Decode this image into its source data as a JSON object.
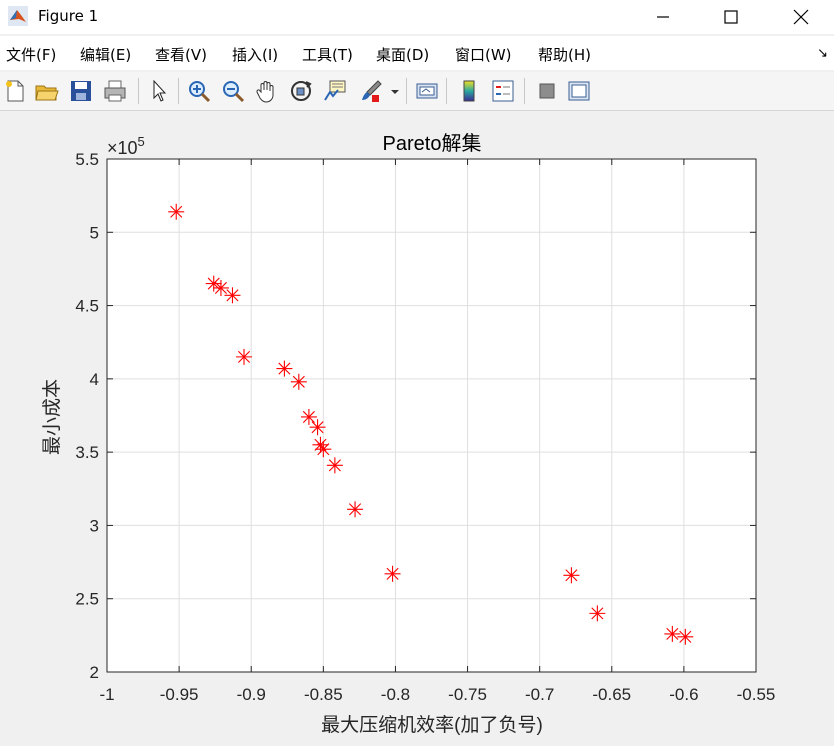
{
  "window": {
    "title": "Figure 1"
  },
  "menu": [
    "文件(F)",
    "编辑(E)",
    "查看(V)",
    "插入(I)",
    "工具(T)",
    "桌面(D)",
    "窗口(W)",
    "帮助(H)"
  ],
  "toolbar_icons": [
    "new-figure-icon",
    "open-file-icon",
    "save-icon",
    "print-icon",
    "pointer-icon",
    "zoom-in-icon",
    "zoom-out-icon",
    "pan-icon",
    "rotate-3d-icon",
    "data-cursor-icon",
    "brush-icon",
    "brush-dropdown-icon",
    "link-plot-icon",
    "colorbar-icon",
    "legend-icon",
    "hide-plot-tools-icon",
    "show-plot-tools-icon"
  ],
  "chart_data": {
    "type": "scatter",
    "title": "Pareto解集",
    "xlabel": "最大压缩机效率(加了负号)",
    "ylabel": "最小成本",
    "y_exponent_label": "×10",
    "y_exponent_power": "5",
    "xlim": [
      -1,
      -0.55
    ],
    "ylim": [
      2,
      5.5
    ],
    "xticks": [
      "-1",
      "-0.95",
      "-0.9",
      "-0.85",
      "-0.8",
      "-0.75",
      "-0.7",
      "-0.65",
      "-0.6",
      "-0.55"
    ],
    "yticks": [
      "2",
      "2.5",
      "3",
      "3.5",
      "4",
      "4.5",
      "5",
      "5.5"
    ],
    "grid": true,
    "marker": "asterisk",
    "marker_color": "#ff0000",
    "points": [
      {
        "x": -0.952,
        "y": 5.14
      },
      {
        "x": -0.926,
        "y": 4.65
      },
      {
        "x": -0.921,
        "y": 4.62
      },
      {
        "x": -0.913,
        "y": 4.57
      },
      {
        "x": -0.905,
        "y": 4.15
      },
      {
        "x": -0.877,
        "y": 4.07
      },
      {
        "x": -0.867,
        "y": 3.98
      },
      {
        "x": -0.86,
        "y": 3.74
      },
      {
        "x": -0.854,
        "y": 3.67
      },
      {
        "x": -0.852,
        "y": 3.55
      },
      {
        "x": -0.85,
        "y": 3.52
      },
      {
        "x": -0.842,
        "y": 3.41
      },
      {
        "x": -0.828,
        "y": 3.11
      },
      {
        "x": -0.802,
        "y": 2.67
      },
      {
        "x": -0.678,
        "y": 2.66
      },
      {
        "x": -0.66,
        "y": 2.4
      },
      {
        "x": -0.608,
        "y": 2.26
      },
      {
        "x": -0.599,
        "y": 2.24
      }
    ]
  }
}
